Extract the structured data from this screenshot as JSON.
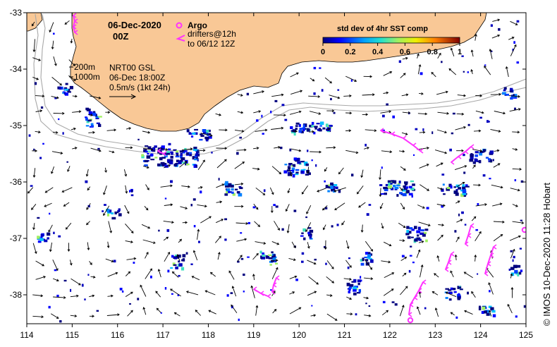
{
  "map": {
    "date_title": "06-Dec-2020",
    "time_title": "00Z",
    "argo_label": "Argo",
    "drifters_label_1": "drifters@12h",
    "drifters_label_2": "to 06/12 12Z",
    "isobath_200": "200m",
    "isobath_1000": "1000m",
    "product_line_1": "NRT00 GSL",
    "product_line_2": "06-Dec 18:00Z",
    "product_line_3": "0.5m/s (1kt 24h)",
    "credit": "© IMOS 10-Dec-2020 11:28 Hobart",
    "colors": {
      "land": "#f9c896",
      "argo": "#ff33ff",
      "drifter": "#ff33ff",
      "isobath": "#a8a8a8"
    }
  },
  "colorbar": {
    "title": "std dev of 4hr SST comp",
    "ticks": [
      "0",
      "0.2",
      "0.4",
      "0.6",
      "0.8",
      "1"
    ]
  },
  "axes": {
    "x_ticks": [
      "114",
      "115",
      "116",
      "117",
      "118",
      "119",
      "120",
      "121",
      "122",
      "123",
      "124",
      "125"
    ],
    "y_ticks": [
      "-33",
      "-34",
      "-35",
      "-36",
      "-37",
      "-38"
    ]
  }
}
